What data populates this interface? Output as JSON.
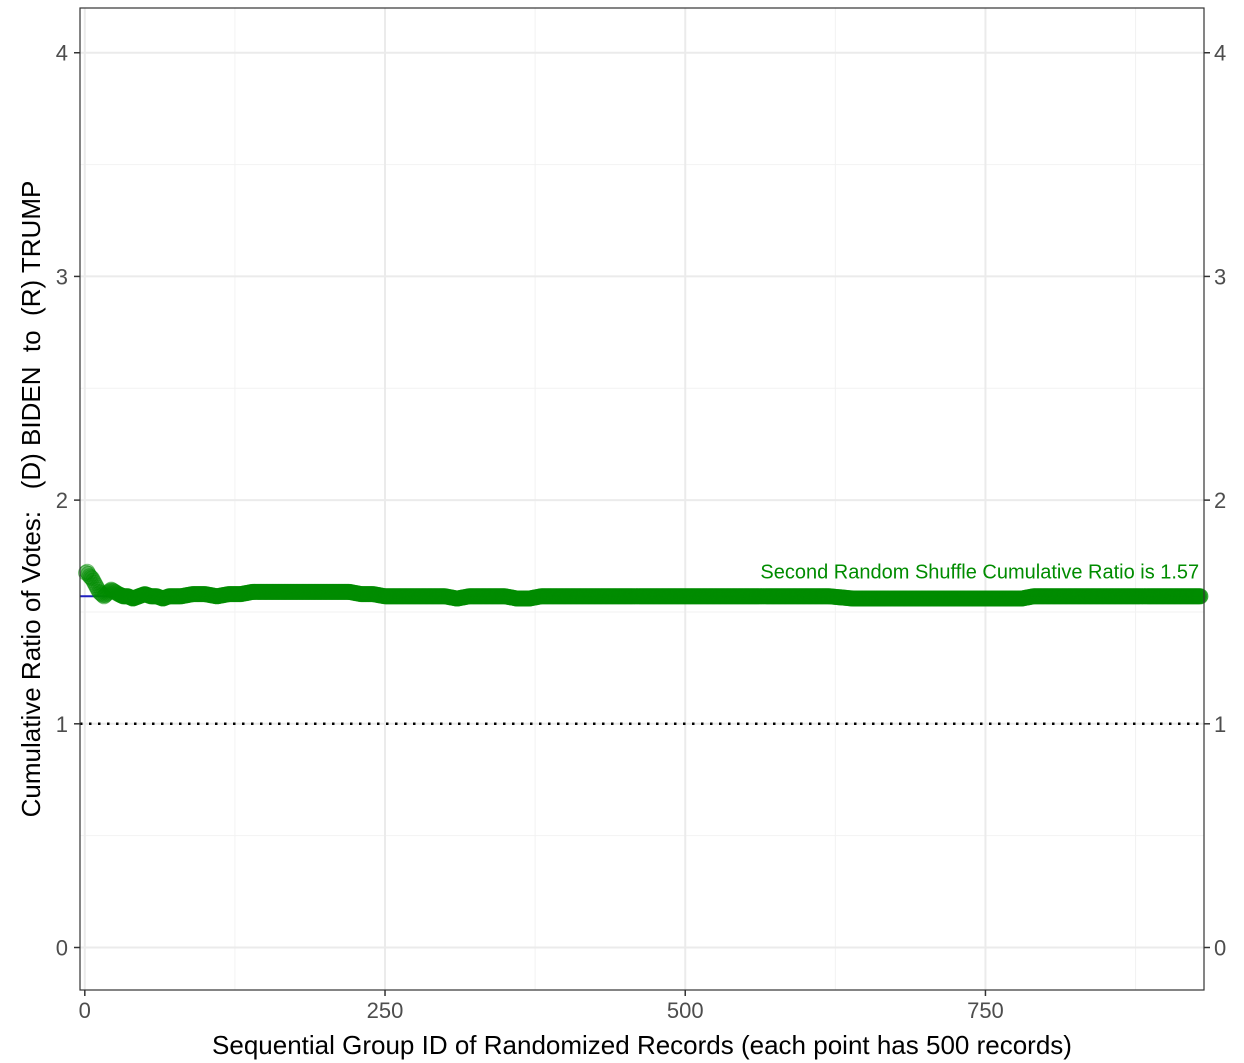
{
  "chart_data": {
    "type": "scatter",
    "title": "",
    "xlabel": "Sequential Group ID of Randomized Records (each point has 500 records)",
    "ylabel": "Cumulative Ratio of Votes:   (D) BIDEN  to  (R) TRUMP",
    "xlim": [
      -4,
      932
    ],
    "ylim": [
      -0.19,
      4.2
    ],
    "x_ticks": [
      0,
      250,
      500,
      750
    ],
    "x_tick_labels": [
      "0",
      "250",
      "500",
      "750"
    ],
    "y_ticks": [
      0,
      1,
      2,
      3,
      4
    ],
    "y_tick_labels": [
      "0",
      "1",
      "2",
      "3",
      "4"
    ],
    "secondary_y_axis": true,
    "grid": true,
    "theme": "white background, light grey major and minor gridlines, black panel border",
    "reference_lines": [
      {
        "y": 1,
        "style": "dotted",
        "color": "#000000"
      },
      {
        "y": 1.57,
        "style": "solid",
        "color": "#1f1fbf"
      }
    ],
    "annotation": {
      "text": "Second Random Shuffle Cumulative Ratio is 1.57",
      "x": 928,
      "y": 1.65,
      "color": "#008c00"
    },
    "series": [
      {
        "color": "#008c00",
        "marker": "circle",
        "x_max": 929,
        "points": [
          [
            0,
            1.67
          ],
          [
            2,
            1.68
          ],
          [
            4,
            1.66
          ],
          [
            6,
            1.65
          ],
          [
            8,
            1.63
          ],
          [
            10,
            1.61
          ],
          [
            12,
            1.59
          ],
          [
            14,
            1.58
          ],
          [
            16,
            1.57
          ],
          [
            18,
            1.58
          ],
          [
            20,
            1.59
          ],
          [
            22,
            1.6
          ],
          [
            25,
            1.59
          ],
          [
            28,
            1.58
          ],
          [
            32,
            1.57
          ],
          [
            36,
            1.57
          ],
          [
            40,
            1.56
          ],
          [
            45,
            1.57
          ],
          [
            50,
            1.58
          ],
          [
            55,
            1.57
          ],
          [
            60,
            1.57
          ],
          [
            65,
            1.56
          ],
          [
            70,
            1.57
          ],
          [
            80,
            1.57
          ],
          [
            90,
            1.58
          ],
          [
            100,
            1.58
          ],
          [
            110,
            1.57
          ],
          [
            120,
            1.58
          ],
          [
            130,
            1.58
          ],
          [
            140,
            1.59
          ],
          [
            150,
            1.59
          ],
          [
            160,
            1.59
          ],
          [
            170,
            1.59
          ],
          [
            180,
            1.59
          ],
          [
            190,
            1.59
          ],
          [
            200,
            1.59
          ],
          [
            210,
            1.59
          ],
          [
            220,
            1.59
          ],
          [
            230,
            1.58
          ],
          [
            240,
            1.58
          ],
          [
            250,
            1.57
          ],
          [
            260,
            1.57
          ],
          [
            270,
            1.57
          ],
          [
            280,
            1.57
          ],
          [
            290,
            1.57
          ],
          [
            300,
            1.57
          ],
          [
            310,
            1.56
          ],
          [
            320,
            1.57
          ],
          [
            330,
            1.57
          ],
          [
            340,
            1.57
          ],
          [
            350,
            1.57
          ],
          [
            360,
            1.56
          ],
          [
            370,
            1.56
          ],
          [
            380,
            1.57
          ],
          [
            390,
            1.57
          ],
          [
            400,
            1.57
          ],
          [
            420,
            1.57
          ],
          [
            440,
            1.57
          ],
          [
            460,
            1.57
          ],
          [
            480,
            1.57
          ],
          [
            500,
            1.57
          ],
          [
            520,
            1.57
          ],
          [
            540,
            1.57
          ],
          [
            560,
            1.57
          ],
          [
            580,
            1.57
          ],
          [
            600,
            1.57
          ],
          [
            620,
            1.57
          ],
          [
            640,
            1.56
          ],
          [
            660,
            1.56
          ],
          [
            680,
            1.56
          ],
          [
            700,
            1.56
          ],
          [
            720,
            1.56
          ],
          [
            740,
            1.56
          ],
          [
            760,
            1.56
          ],
          [
            780,
            1.56
          ],
          [
            790,
            1.57
          ],
          [
            800,
            1.57
          ],
          [
            820,
            1.57
          ],
          [
            840,
            1.57
          ],
          [
            860,
            1.57
          ],
          [
            880,
            1.57
          ],
          [
            900,
            1.57
          ],
          [
            915,
            1.57
          ],
          [
            929,
            1.57
          ]
        ]
      }
    ]
  }
}
